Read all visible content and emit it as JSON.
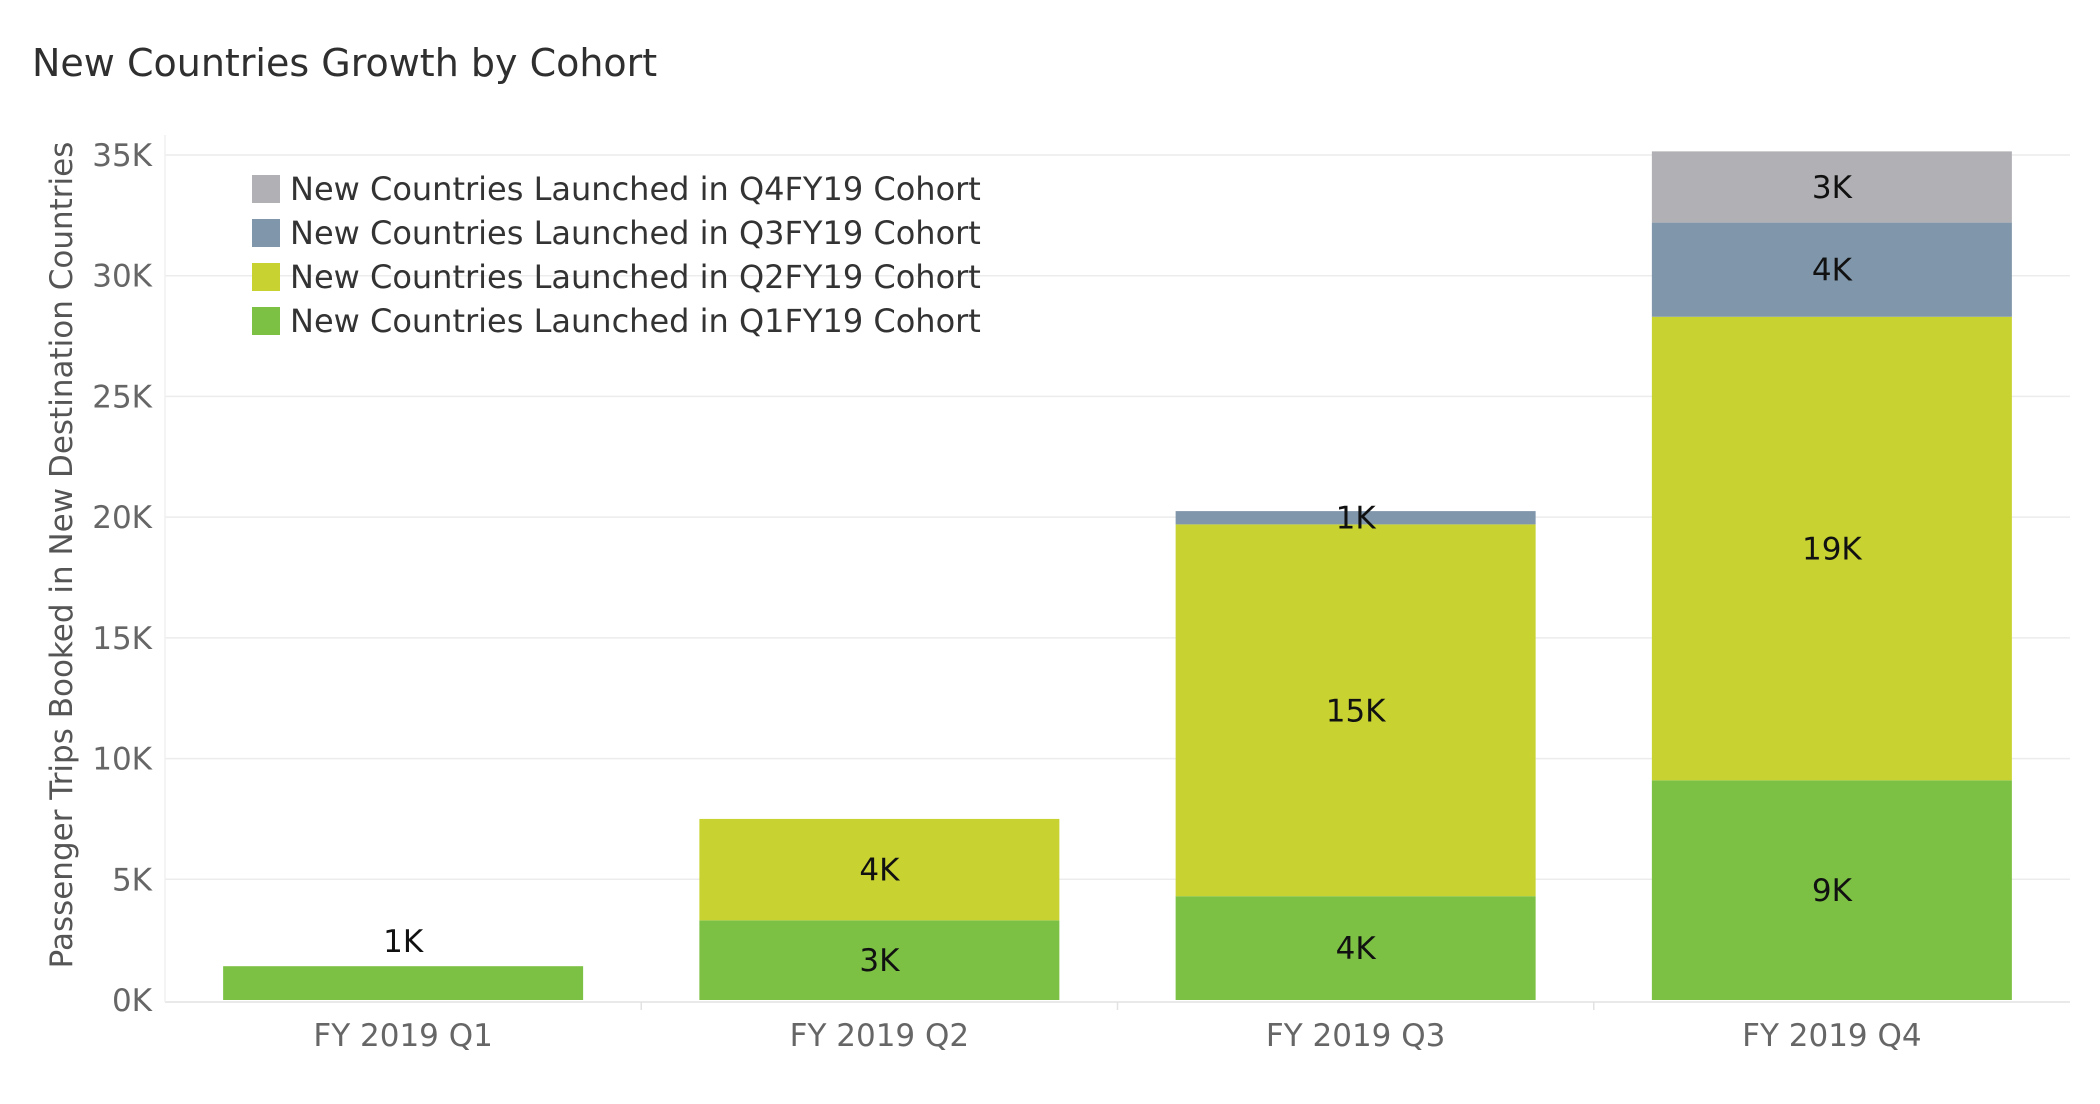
{
  "chart_data": {
    "type": "bar",
    "stacked": true,
    "title": "New Countries Growth by Cohort",
    "ylabel": "Passenger Trips Booked in New Destination Countries",
    "xlabel": "",
    "categories": [
      "FY 2019 Q1",
      "FY 2019 Q2",
      "FY 2019 Q3",
      "FY 2019 Q4"
    ],
    "ylim": [
      0,
      35000
    ],
    "yticks": [
      0,
      5000,
      10000,
      15000,
      20000,
      25000,
      30000,
      35000
    ],
    "ytick_labels": [
      "0K",
      "5K",
      "10K",
      "15K",
      "20K",
      "25K",
      "30K",
      "35K"
    ],
    "grid": true,
    "legend_position": "top-left",
    "series": [
      {
        "name": "New Countries Launched in Q1FY19 Cohort",
        "color": "#7cc144",
        "values": [
          1400,
          3300,
          4300,
          9100
        ],
        "labels": [
          "1K",
          "3K",
          "4K",
          "9K"
        ]
      },
      {
        "name": "New Countries Launched in Q2FY19 Cohort",
        "color": "#c8d332",
        "values": [
          null,
          4200,
          15400,
          19200
        ],
        "labels": [
          "",
          "4K",
          "15K",
          "19K"
        ]
      },
      {
        "name": "New Countries Launched in Q3FY19 Cohort",
        "color": "#8096ab",
        "values": [
          null,
          null,
          550,
          3900
        ],
        "labels": [
          "",
          "",
          "1K",
          "4K"
        ]
      },
      {
        "name": "New Countries Launched in Q4FY19 Cohort",
        "color": "#b1b1b5",
        "values": [
          null,
          null,
          null,
          2950
        ],
        "labels": [
          "",
          "",
          "",
          "3K"
        ]
      }
    ],
    "legend_order": [
      3,
      2,
      1,
      0
    ],
    "label_overrides": [
      {
        "category": 0,
        "series": 0,
        "position": "above"
      }
    ]
  }
}
